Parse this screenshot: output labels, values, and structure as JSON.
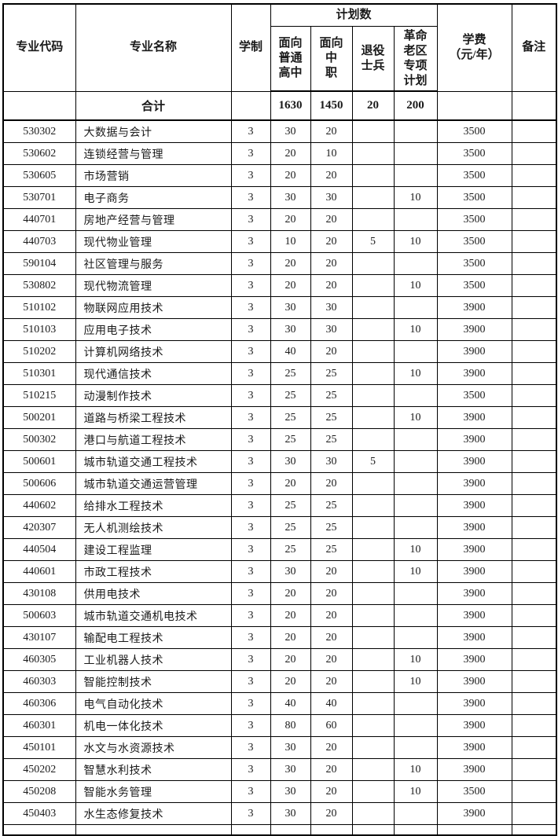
{
  "table": {
    "headers": {
      "code": "专业代码",
      "name": "专业名称",
      "duration": "学制",
      "plan_group": "计划数",
      "plan_regular_hs": "面向\n普通\n高中",
      "plan_vocational": "面向\n中\n职",
      "plan_veterans": "退役\n士兵",
      "plan_old_area": "革命\n老区\n专项\n计划",
      "tuition": "学费\n（元/年）",
      "remarks": "备注"
    },
    "total_row": {
      "label": "合计",
      "regular_hs": "1630",
      "vocational": "1450",
      "veterans": "20",
      "old_area": "200"
    },
    "rows": [
      [
        "530302",
        "大数据与会计",
        "3",
        "30",
        "20",
        "",
        "",
        "3500",
        ""
      ],
      [
        "530602",
        "连锁经营与管理",
        "3",
        "20",
        "10",
        "",
        "",
        "3500",
        ""
      ],
      [
        "530605",
        "市场营销",
        "3",
        "20",
        "20",
        "",
        "",
        "3500",
        ""
      ],
      [
        "530701",
        "电子商务",
        "3",
        "30",
        "30",
        "",
        "10",
        "3500",
        ""
      ],
      [
        "440701",
        "房地产经营与管理",
        "3",
        "20",
        "20",
        "",
        "",
        "3500",
        ""
      ],
      [
        "440703",
        "现代物业管理",
        "3",
        "10",
        "20",
        "5",
        "10",
        "3500",
        ""
      ],
      [
        "590104",
        "社区管理与服务",
        "3",
        "20",
        "20",
        "",
        "",
        "3500",
        ""
      ],
      [
        "530802",
        "现代物流管理",
        "3",
        "20",
        "20",
        "",
        "10",
        "3500",
        ""
      ],
      [
        "510102",
        "物联网应用技术",
        "3",
        "30",
        "30",
        "",
        "",
        "3900",
        ""
      ],
      [
        "510103",
        "应用电子技术",
        "3",
        "30",
        "30",
        "",
        "10",
        "3900",
        ""
      ],
      [
        "510202",
        "计算机网络技术",
        "3",
        "40",
        "20",
        "",
        "",
        "3900",
        ""
      ],
      [
        "510301",
        "现代通信技术",
        "3",
        "25",
        "25",
        "",
        "10",
        "3900",
        ""
      ],
      [
        "510215",
        "动漫制作技术",
        "3",
        "25",
        "25",
        "",
        "",
        "3500",
        ""
      ],
      [
        "500201",
        "道路与桥梁工程技术",
        "3",
        "25",
        "25",
        "",
        "10",
        "3900",
        ""
      ],
      [
        "500302",
        "港口与航道工程技术",
        "3",
        "25",
        "25",
        "",
        "",
        "3900",
        ""
      ],
      [
        "500601",
        "城市轨道交通工程技术",
        "3",
        "30",
        "30",
        "5",
        "",
        "3900",
        ""
      ],
      [
        "500606",
        "城市轨道交通运营管理",
        "3",
        "20",
        "20",
        "",
        "",
        "3900",
        ""
      ],
      [
        "440602",
        "给排水工程技术",
        "3",
        "25",
        "25",
        "",
        "",
        "3900",
        ""
      ],
      [
        "420307",
        "无人机测绘技术",
        "3",
        "25",
        "25",
        "",
        "",
        "3900",
        ""
      ],
      [
        "440504",
        "建设工程监理",
        "3",
        "25",
        "25",
        "",
        "10",
        "3900",
        ""
      ],
      [
        "440601",
        "市政工程技术",
        "3",
        "30",
        "20",
        "",
        "10",
        "3900",
        ""
      ],
      [
        "430108",
        "供用电技术",
        "3",
        "20",
        "20",
        "",
        "",
        "3900",
        ""
      ],
      [
        "500603",
        "城市轨道交通机电技术",
        "3",
        "20",
        "20",
        "",
        "",
        "3900",
        ""
      ],
      [
        "430107",
        "输配电工程技术",
        "3",
        "20",
        "20",
        "",
        "",
        "3900",
        ""
      ],
      [
        "460305",
        "工业机器人技术",
        "3",
        "20",
        "20",
        "",
        "10",
        "3900",
        ""
      ],
      [
        "460303",
        "智能控制技术",
        "3",
        "20",
        "20",
        "",
        "10",
        "3900",
        ""
      ],
      [
        "460306",
        "电气自动化技术",
        "3",
        "40",
        "40",
        "",
        "",
        "3900",
        ""
      ],
      [
        "460301",
        "机电一体化技术",
        "3",
        "80",
        "60",
        "",
        "",
        "3900",
        ""
      ],
      [
        "450101",
        "水文与水资源技术",
        "3",
        "30",
        "20",
        "",
        "",
        "3900",
        ""
      ],
      [
        "450202",
        "智慧水利技术",
        "3",
        "30",
        "20",
        "",
        "10",
        "3900",
        ""
      ],
      [
        "450208",
        "智能水务管理",
        "3",
        "30",
        "20",
        "",
        "10",
        "3500",
        ""
      ],
      [
        "450403",
        "水生态修复技术",
        "3",
        "30",
        "20",
        "",
        "",
        "3900",
        ""
      ]
    ]
  },
  "colors": {
    "border": "#000000",
    "text": "#1a1a1a",
    "background": "#ffffff"
  }
}
